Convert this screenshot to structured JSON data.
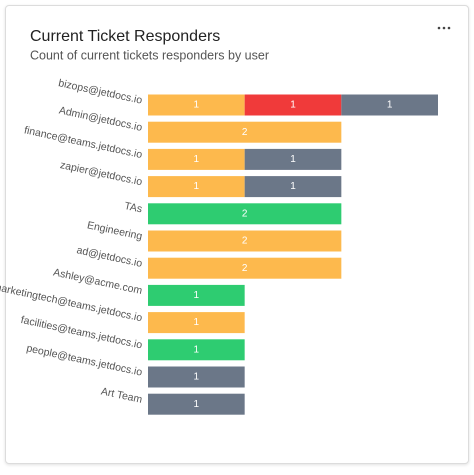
{
  "chart_data": {
    "type": "stacked-bar-horizontal",
    "title": "Current Ticket Responders",
    "subtitle": "Count of current tickets responders by user",
    "categories": [
      "bizops@jetdocs.io",
      "Admin@jetdocs.io",
      "finance@teams.jetdocs.io",
      "zapier@jetdocs.io",
      "TAs",
      "Engineering",
      "ad@jetdocs.io",
      "Ashley@acme.com",
      "marketingtech@teams.jetdocs.io",
      "facilities@teams.jetdocs.io",
      "people@teams.jetdocs.io",
      "Art Team"
    ],
    "series": [
      {
        "color": "#fdb94d",
        "values": [
          1,
          2,
          1,
          1,
          null,
          2,
          2,
          null,
          1,
          null,
          null,
          null
        ]
      },
      {
        "color": "#f03a3a",
        "values": [
          1,
          null,
          null,
          null,
          null,
          null,
          null,
          null,
          null,
          null,
          null,
          null
        ]
      },
      {
        "color": "#6b7788",
        "values": [
          1,
          null,
          1,
          1,
          null,
          null,
          null,
          null,
          null,
          null,
          1,
          1
        ]
      },
      {
        "color": "#2ecc71",
        "values": [
          null,
          null,
          null,
          null,
          2,
          null,
          null,
          1,
          null,
          1,
          null,
          null
        ]
      }
    ]
  }
}
